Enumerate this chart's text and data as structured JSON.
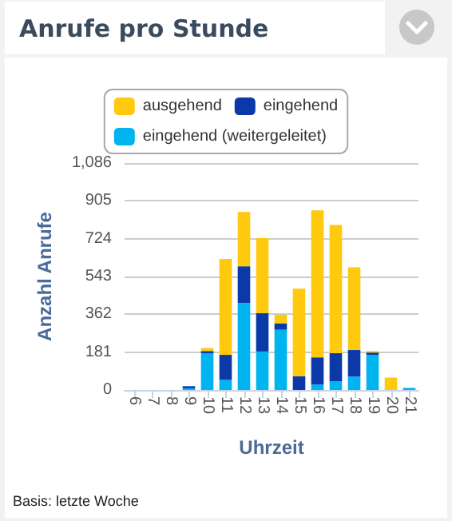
{
  "chart_data": {
    "type": "bar",
    "title": "Anrufe pro Stunde",
    "xlabel": "Uhrzeit",
    "ylabel": "Anzahl Anrufe",
    "annotations": [
      "Basis: letzte Woche"
    ],
    "categories": [
      "6",
      "7",
      "8",
      "9",
      "10",
      "11",
      "12",
      "13",
      "14",
      "15",
      "16",
      "17",
      "18",
      "19",
      "20",
      "21"
    ],
    "stacked": true,
    "series": [
      {
        "name": "eingehend (weitergeleitet)",
        "color": "#00b4f0",
        "values": [
          0,
          0,
          0,
          8,
          176,
          48,
          416,
          184,
          288,
          0,
          26,
          41,
          64,
          168,
          0,
          10
        ]
      },
      {
        "name": "eingehend",
        "color": "#0b3aa8",
        "values": [
          0,
          0,
          0,
          10,
          10,
          120,
          176,
          183,
          31,
          66,
          130,
          135,
          127,
          11,
          0,
          0
        ]
      },
      {
        "name": "ausgehend",
        "color": "#ffc90e",
        "values": [
          0,
          0,
          0,
          0,
          15,
          459,
          260,
          360,
          41,
          419,
          703,
          614,
          396,
          7,
          59,
          0
        ]
      }
    ],
    "ylim": [
      0,
      1086
    ],
    "yticks": [
      0,
      181,
      362,
      543,
      724,
      905,
      {
        "value": 1086,
        "label": "1,086"
      }
    ],
    "grid": "y",
    "legend": "top"
  }
}
